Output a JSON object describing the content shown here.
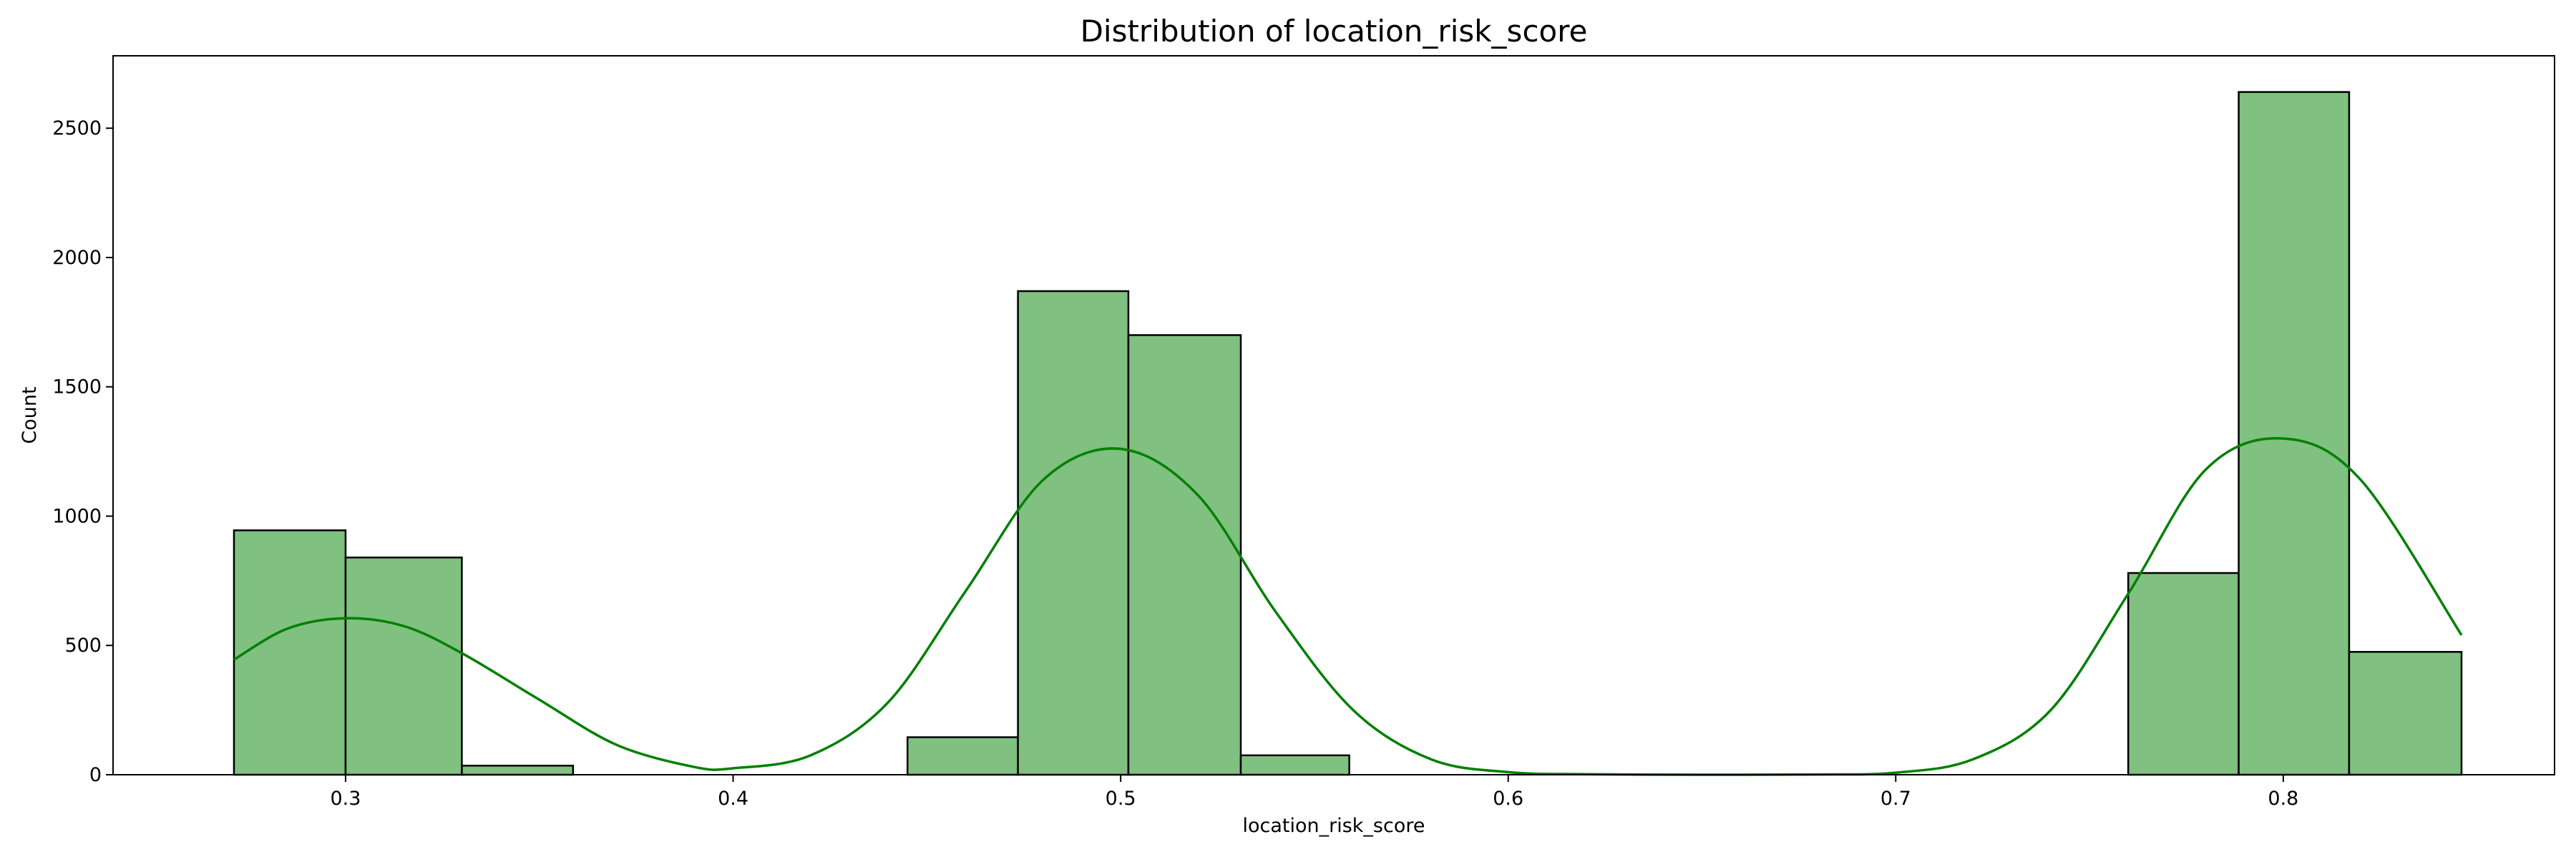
{
  "chart_data": {
    "type": "bar",
    "title": "Distribution of location_risk_score",
    "xlabel": "location_risk_score",
    "ylabel": "Count",
    "xlim": [
      0.24,
      0.87
    ],
    "ylim": [
      0,
      2780
    ],
    "xticks": [
      0.3,
      0.4,
      0.5,
      0.6,
      0.7,
      0.8
    ],
    "xtick_labels": [
      "0.3",
      "0.4",
      "0.5",
      "0.6",
      "0.7",
      "0.8"
    ],
    "yticks": [
      0,
      500,
      1000,
      1500,
      2000,
      2500
    ],
    "ytick_labels": [
      "0",
      "500",
      "1000",
      "1500",
      "2000",
      "2500"
    ],
    "bar_fill": "#80c080",
    "bar_edge": "#000000",
    "kde_color": "#008000",
    "grid": false,
    "bins": [
      {
        "x0": 0.2712,
        "x1": 0.3,
        "count": 945
      },
      {
        "x0": 0.3,
        "x1": 0.33,
        "count": 840
      },
      {
        "x0": 0.33,
        "x1": 0.3587,
        "count": 35
      },
      {
        "x0": 0.445,
        "x1": 0.4735,
        "count": 145
      },
      {
        "x0": 0.4735,
        "x1": 0.502,
        "count": 1870
      },
      {
        "x0": 0.502,
        "x1": 0.531,
        "count": 1700
      },
      {
        "x0": 0.531,
        "x1": 0.559,
        "count": 75
      },
      {
        "x0": 0.76,
        "x1": 0.7885,
        "count": 780
      },
      {
        "x0": 0.7885,
        "x1": 0.817,
        "count": 2640
      },
      {
        "x0": 0.817,
        "x1": 0.846,
        "count": 475
      }
    ],
    "kde": {
      "x": [
        0.2712,
        0.285,
        0.3,
        0.315,
        0.33,
        0.35,
        0.37,
        0.39,
        0.4,
        0.42,
        0.44,
        0.46,
        0.48,
        0.5,
        0.52,
        0.54,
        0.56,
        0.58,
        0.6,
        0.62,
        0.65,
        0.68,
        0.7,
        0.72,
        0.74,
        0.76,
        0.78,
        0.8,
        0.82,
        0.846
      ],
      "y": [
        445,
        565,
        605,
        575,
        470,
        290,
        115,
        30,
        25,
        75,
        280,
        710,
        1140,
        1260,
        1080,
        630,
        250,
        60,
        10,
        2,
        0,
        1,
        8,
        60,
        250,
        700,
        1180,
        1300,
        1140,
        540
      ]
    }
  }
}
